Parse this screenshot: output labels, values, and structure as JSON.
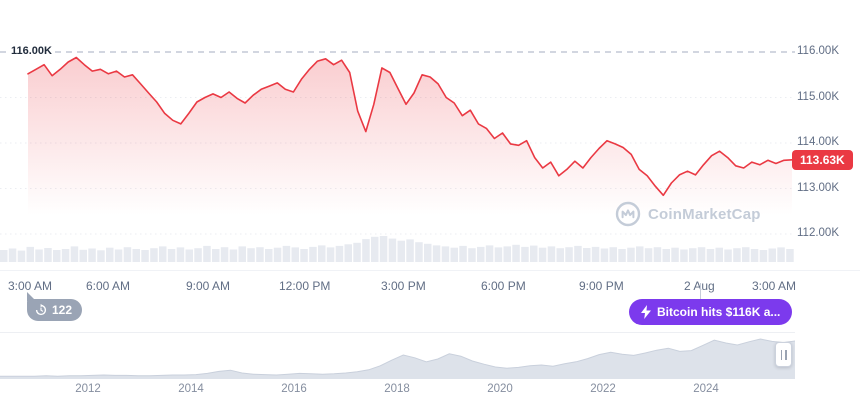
{
  "colors": {
    "line_red": "#EA3943",
    "news_purple": "#7C3AED",
    "count_gray": "#9AA4B5",
    "watermark_gray": "#C4CCD8",
    "volume_fill": "#E7EAF0",
    "mini_fill": "#DDE2EA",
    "mini_stroke": "#C9D0DC",
    "grid_line": "#EBEDF2",
    "dashed_ref": "#A5ADC0"
  },
  "chart_data": {
    "type": "line",
    "coin": "Bitcoin",
    "y_axis": {
      "ticks": [
        "116.00K",
        "115.00K",
        "114.00K",
        "113.00K",
        "112.00K"
      ],
      "tick_values": [
        116,
        115,
        114,
        113,
        112
      ],
      "range": [
        112,
        116
      ]
    },
    "x_ticks": [
      "3:00 AM",
      "6:00 AM",
      "9:00 AM",
      "12:00 PM",
      "3:00 PM",
      "6:00 PM",
      "9:00 PM",
      "2 Aug",
      "3:00 AM"
    ],
    "reference_line": {
      "label": "116.00K",
      "value": 116
    },
    "current_price": {
      "label": "113.63K",
      "value": 113.63
    },
    "price_series": {
      "unit": "K USD",
      "values": [
        115.52,
        115.62,
        115.72,
        115.48,
        115.62,
        115.78,
        115.88,
        115.72,
        115.58,
        115.62,
        115.52,
        115.58,
        115.45,
        115.5,
        115.3,
        115.1,
        114.9,
        114.65,
        114.5,
        114.42,
        114.65,
        114.9,
        115.0,
        115.08,
        115.0,
        115.12,
        114.98,
        114.88,
        115.05,
        115.18,
        115.25,
        115.32,
        115.18,
        115.12,
        115.4,
        115.62,
        115.8,
        115.85,
        115.72,
        115.82,
        115.55,
        114.7,
        114.25,
        114.85,
        115.65,
        115.55,
        115.2,
        114.85,
        115.1,
        115.5,
        115.45,
        115.3,
        115.0,
        114.88,
        114.6,
        114.72,
        114.42,
        114.32,
        114.1,
        114.22,
        113.98,
        113.95,
        114.05,
        113.68,
        113.45,
        113.58,
        113.28,
        113.42,
        113.6,
        113.45,
        113.68,
        113.88,
        114.05,
        113.98,
        113.9,
        113.75,
        113.42,
        113.28,
        113.05,
        112.85,
        113.12,
        113.3,
        113.38,
        113.3,
        113.52,
        113.72,
        113.82,
        113.68,
        113.5,
        113.45,
        113.58,
        113.52,
        113.62,
        113.55,
        113.62,
        113.63
      ]
    },
    "volume_bars": [
      0.46,
      0.52,
      0.44,
      0.58,
      0.48,
      0.54,
      0.46,
      0.5,
      0.6,
      0.47,
      0.52,
      0.45,
      0.55,
      0.48,
      0.57,
      0.5,
      0.46,
      0.53,
      0.6,
      0.5,
      0.56,
      0.48,
      0.53,
      0.62,
      0.5,
      0.57,
      0.48,
      0.6,
      0.53,
      0.57,
      0.5,
      0.55,
      0.62,
      0.56,
      0.5,
      0.58,
      0.64,
      0.56,
      0.62,
      0.68,
      0.74,
      0.88,
      0.97,
      1.0,
      0.9,
      0.82,
      0.87,
      0.76,
      0.7,
      0.64,
      0.6,
      0.55,
      0.62,
      0.53,
      0.58,
      0.64,
      0.56,
      0.6,
      0.66,
      0.58,
      0.63,
      0.55,
      0.6,
      0.53,
      0.57,
      0.62,
      0.54,
      0.58,
      0.52,
      0.57,
      0.5,
      0.55,
      0.6,
      0.53,
      0.57,
      0.5,
      0.55,
      0.48,
      0.53,
      0.57,
      0.5,
      0.55,
      0.48,
      0.53,
      0.57,
      0.5,
      0.46,
      0.52,
      0.56,
      0.5
    ],
    "mini_chart": {
      "year_ticks": [
        "2012",
        "2014",
        "2016",
        "2018",
        "2020",
        "2022",
        "2024"
      ],
      "values": [
        0.02,
        0.02,
        0.02,
        0.02,
        0.03,
        0.02,
        0.03,
        0.03,
        0.04,
        0.05,
        0.04,
        0.04,
        0.03,
        0.03,
        0.04,
        0.05,
        0.05,
        0.06,
        0.09,
        0.14,
        0.17,
        0.1,
        0.07,
        0.06,
        0.05,
        0.07,
        0.09,
        0.08,
        0.07,
        0.08,
        0.1,
        0.13,
        0.18,
        0.28,
        0.42,
        0.55,
        0.48,
        0.38,
        0.45,
        0.58,
        0.52,
        0.4,
        0.32,
        0.25,
        0.22,
        0.24,
        0.28,
        0.3,
        0.27,
        0.33,
        0.38,
        0.46,
        0.56,
        0.62,
        0.57,
        0.54,
        0.6,
        0.67,
        0.72,
        0.64,
        0.66,
        0.79,
        0.92,
        0.85,
        0.8,
        0.88,
        0.95,
        0.89,
        0.86,
        0.9
      ]
    }
  },
  "badges": {
    "count_badge": {
      "label": "122",
      "icon": "history-icon"
    },
    "news_badge": {
      "label": "Bitcoin hits $116K a...",
      "icon": "lightning-icon"
    }
  },
  "watermark": {
    "text": "CoinMarketCap"
  }
}
